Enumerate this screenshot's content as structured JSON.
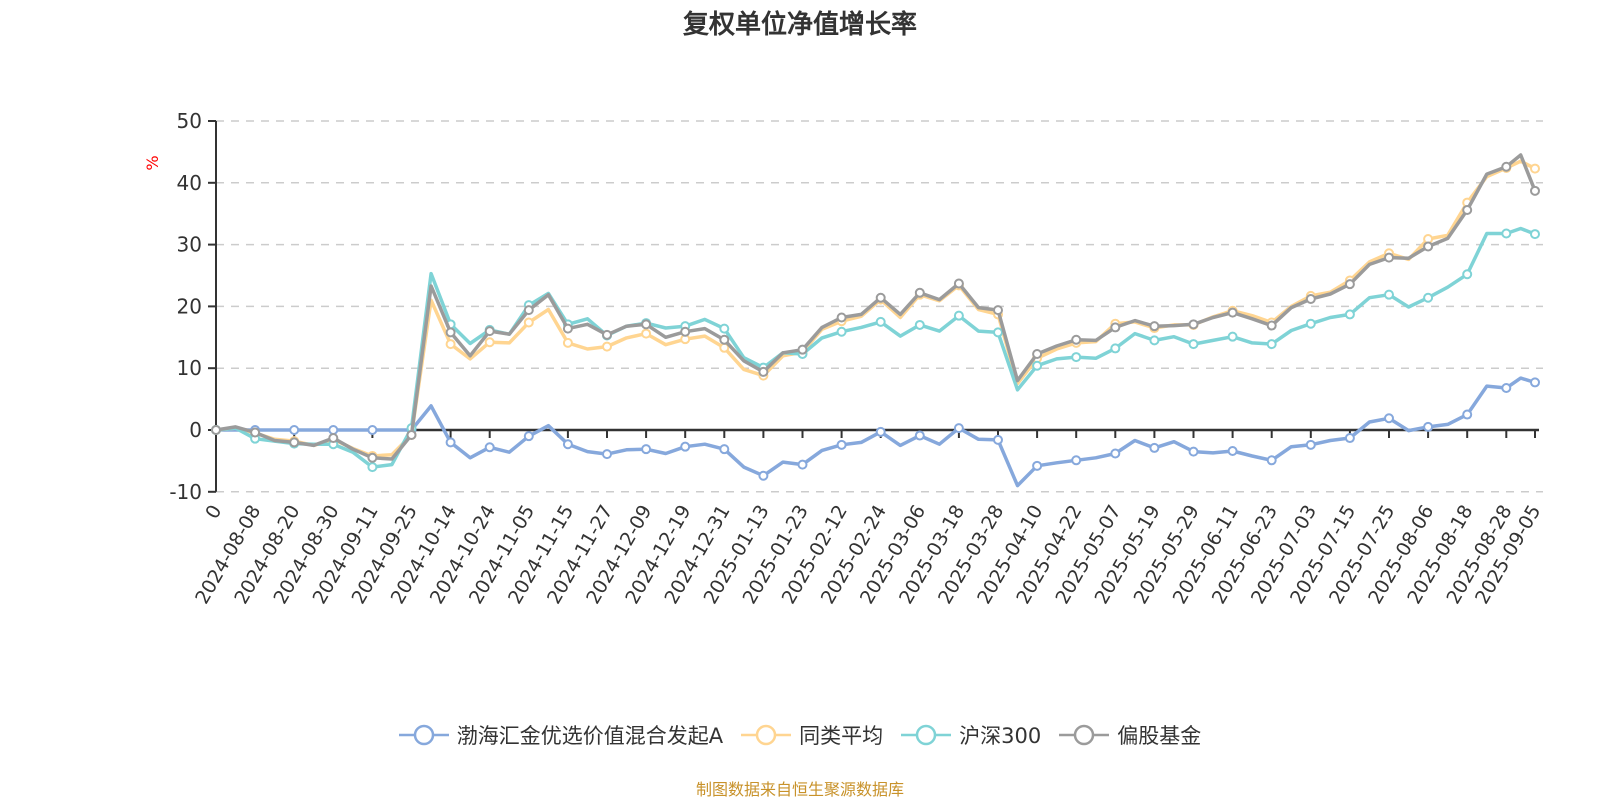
{
  "title": "复权单位净值增长率",
  "footer": "制图数据来自恒生聚源数据库",
  "colors": {
    "footer": "#c8922a",
    "title": "#333333",
    "unit": "#ff0000"
  },
  "chart_data": {
    "type": "line",
    "title": "复权单位净值增长率",
    "ylabel": "%",
    "ylim": [
      -10,
      50
    ],
    "yticks": [
      -10,
      0,
      10,
      20,
      30,
      40,
      50
    ],
    "grid": "horizontal dashed",
    "legend_position": "bottom",
    "x": [
      "0",
      "",
      "2024-08-08",
      "",
      "2024-08-20",
      "",
      "2024-08-30",
      "",
      "2024-09-11",
      "",
      "2024-09-25",
      "",
      "2024-10-14",
      "",
      "2024-10-24",
      "",
      "2024-11-05",
      "",
      "2024-11-15",
      "",
      "2024-11-27",
      "",
      "2024-12-09",
      "",
      "2024-12-19",
      "",
      "2024-12-31",
      "",
      "2025-01-13",
      "",
      "2025-01-23",
      "",
      "2025-02-12",
      "",
      "2025-02-24",
      "",
      "2025-03-06",
      "",
      "2025-03-18",
      "",
      "2025-03-28",
      "",
      "2025-04-10",
      "",
      "2025-04-22",
      "",
      "2025-05-07",
      "",
      "2025-05-19",
      "",
      "2025-05-29",
      "",
      "2025-06-11",
      "",
      "2025-06-23",
      "",
      "2025-07-03",
      "",
      "2025-07-15",
      "",
      "2025-07-25",
      "",
      "2025-08-06",
      "",
      "2025-08-18",
      "",
      "2025-08-28",
      "",
      "2025-09-05"
    ],
    "series": [
      {
        "name": "渤海汇金优选价值混合发起A",
        "color": "#86a8dc",
        "values": [
          0,
          0,
          0,
          0,
          0,
          0,
          0,
          0,
          0,
          0,
          0,
          3.9,
          -2.0,
          -4.5,
          -2.8,
          -3.6,
          -1.0,
          0.7,
          -2.3,
          -3.5,
          -3.9,
          -3.2,
          -3.1,
          -3.8,
          -2.7,
          -2.3,
          -3.1,
          -6.0,
          -7.4,
          -5.2,
          -5.6,
          -3.3,
          -2.4,
          -2.0,
          -0.3,
          -2.5,
          -0.9,
          -2.3,
          0.3,
          -1.5,
          -1.6,
          -9.0,
          -5.8,
          -5.3,
          -4.9,
          -4.5,
          -3.8,
          -1.7,
          -2.9,
          -1.9,
          -3.5,
          -3.7,
          -3.4,
          -4.2,
          -4.9,
          -2.7,
          -2.4,
          -1.7,
          -1.3,
          1.3,
          1.9,
          -0.1,
          0.5,
          0.9,
          2.5,
          7.1,
          6.8,
          8.4,
          7.7
        ]
      },
      {
        "name": "同类平均",
        "color": "#ffd591",
        "values": [
          0,
          0.3,
          -0.5,
          -1.5,
          -1.8,
          -2.5,
          -1.5,
          -3.0,
          -4.2,
          -4.0,
          -0.8,
          21.0,
          13.9,
          11.5,
          14.2,
          14.1,
          17.4,
          19.5,
          14.1,
          13.1,
          13.5,
          14.9,
          15.6,
          13.8,
          14.7,
          15.2,
          13.3,
          9.8,
          8.8,
          12.0,
          12.6,
          16.3,
          17.6,
          18.4,
          21.1,
          18.2,
          21.9,
          20.9,
          23.4,
          19.5,
          18.7,
          7.5,
          11.6,
          13.1,
          14.1,
          14.3,
          17.2,
          17.5,
          16.5,
          17.0,
          17.0,
          18.3,
          19.3,
          18.5,
          17.4,
          20.0,
          21.7,
          22.3,
          24.2,
          27.2,
          28.6,
          27.6,
          30.9,
          31.5,
          36.8,
          41.0,
          42.4,
          43.5,
          42.3
        ]
      },
      {
        "name": "沪深300",
        "color": "#7fd3d6",
        "values": [
          0,
          0.3,
          -1.4,
          -1.8,
          -2.2,
          -2.3,
          -2.3,
          -3.6,
          -6.0,
          -5.6,
          0.3,
          25.3,
          17.1,
          14.0,
          16.2,
          15.5,
          20.2,
          22.1,
          17.1,
          18.0,
          15.3,
          16.8,
          17.3,
          16.5,
          16.8,
          17.9,
          16.4,
          11.7,
          10.1,
          12.5,
          12.3,
          14.9,
          15.9,
          16.6,
          17.5,
          15.2,
          17.0,
          16.0,
          18.5,
          16.0,
          15.8,
          6.5,
          10.4,
          11.5,
          11.8,
          11.6,
          13.2,
          15.6,
          14.5,
          15.1,
          13.9,
          14.5,
          15.1,
          14.1,
          13.9,
          16.1,
          17.2,
          18.2,
          18.7,
          21.4,
          21.9,
          19.9,
          21.4,
          23.1,
          25.2,
          31.8,
          31.8,
          32.6,
          31.7
        ]
      },
      {
        "name": "偏股基金",
        "color": "#9b9b9b",
        "values": [
          0,
          0.5,
          -0.4,
          -1.7,
          -2.0,
          -2.5,
          -1.3,
          -3.1,
          -4.5,
          -4.7,
          -0.8,
          23.3,
          15.8,
          12.0,
          16.0,
          15.5,
          19.4,
          21.9,
          16.4,
          17.1,
          15.4,
          16.8,
          17.1,
          15.0,
          15.9,
          16.4,
          14.6,
          11.2,
          9.4,
          12.5,
          13.0,
          16.6,
          18.2,
          18.7,
          21.4,
          18.7,
          22.2,
          21.1,
          23.7,
          19.8,
          19.4,
          8.0,
          12.3,
          13.6,
          14.6,
          14.5,
          16.6,
          17.7,
          16.8,
          16.9,
          17.1,
          18.2,
          19.0,
          18.0,
          16.9,
          19.8,
          21.2,
          22.0,
          23.6,
          26.8,
          27.9,
          27.8,
          29.7,
          31.0,
          35.6,
          41.4,
          42.6,
          44.5,
          38.7
        ]
      }
    ]
  }
}
